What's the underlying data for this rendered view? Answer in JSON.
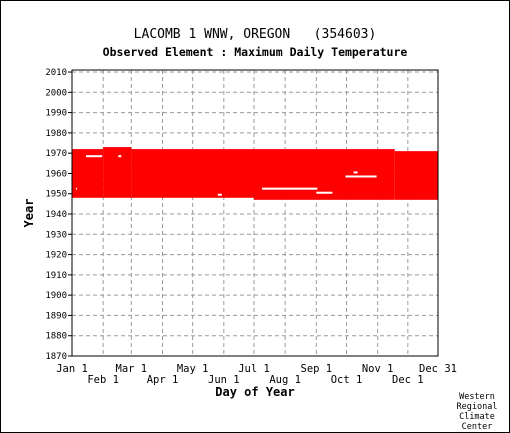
{
  "chart_data": {
    "type": "heatmap",
    "title": "LACOMB 1 WNW, OREGON   (354603)",
    "subtitle": "Observed Element : Maximum Daily Temperature",
    "xlabel": "Day of Year",
    "ylabel": "Year",
    "ylim": [
      1870,
      2011
    ],
    "xlim": [
      1,
      365
    ],
    "grid": true,
    "y_ticks": [
      2010,
      2000,
      1990,
      1980,
      1970,
      1960,
      1950,
      1940,
      1930,
      1920,
      1910,
      1900,
      1890,
      1880,
      1870
    ],
    "x_ticks_upper": [
      {
        "label": "Jan 1",
        "day": 1
      },
      {
        "label": "Mar 1",
        "day": 60
      },
      {
        "label": "May 1",
        "day": 121
      },
      {
        "label": "Jul 1",
        "day": 182
      },
      {
        "label": "Sep 1",
        "day": 244
      },
      {
        "label": "Nov 1",
        "day": 305
      },
      {
        "label": "Dec 31",
        "day": 365
      }
    ],
    "x_ticks_lower": [
      {
        "label": "Feb 1",
        "day": 32
      },
      {
        "label": "Apr 1",
        "day": 91
      },
      {
        "label": "Jun 1",
        "day": 152
      },
      {
        "label": "Aug 1",
        "day": 213
      },
      {
        "label": "Oct 1",
        "day": 274
      },
      {
        "label": "Dec 1",
        "day": 335
      }
    ],
    "data_color": "#ff0000",
    "coverage": [
      {
        "day_start": 1,
        "day_end": 32,
        "year_start": 1948,
        "year_end": 1972
      },
      {
        "day_start": 32,
        "day_end": 60,
        "year_start": 1948,
        "year_end": 1973
      },
      {
        "day_start": 60,
        "day_end": 182,
        "year_start": 1948,
        "year_end": 1972
      },
      {
        "day_start": 182,
        "day_end": 322,
        "year_start": 1947,
        "year_end": 1972
      },
      {
        "day_start": 322,
        "day_end": 365,
        "year_start": 1947,
        "year_end": 1971
      }
    ],
    "gaps": [
      {
        "day_start": 15,
        "day_end": 31,
        "year_start": 1968,
        "year_end": 1969
      },
      {
        "day_start": 47,
        "day_end": 50,
        "year_start": 1968,
        "year_end": 1969
      },
      {
        "day_start": 190,
        "day_end": 245,
        "year_start": 1952,
        "year_end": 1953
      },
      {
        "day_start": 244,
        "day_end": 260,
        "year_start": 1950,
        "year_end": 1951
      },
      {
        "day_start": 273,
        "day_end": 304,
        "year_start": 1958,
        "year_end": 1959
      },
      {
        "day_start": 281,
        "day_end": 285,
        "year_start": 1960,
        "year_end": 1961
      },
      {
        "day_start": 146,
        "day_end": 150,
        "year_start": 1949,
        "year_end": 1950
      },
      {
        "day_start": 5,
        "day_end": 6,
        "year_start": 1952,
        "year_end": 1953
      }
    ]
  },
  "credit": [
    "Western",
    "Regional",
    "Climate",
    "Center"
  ]
}
